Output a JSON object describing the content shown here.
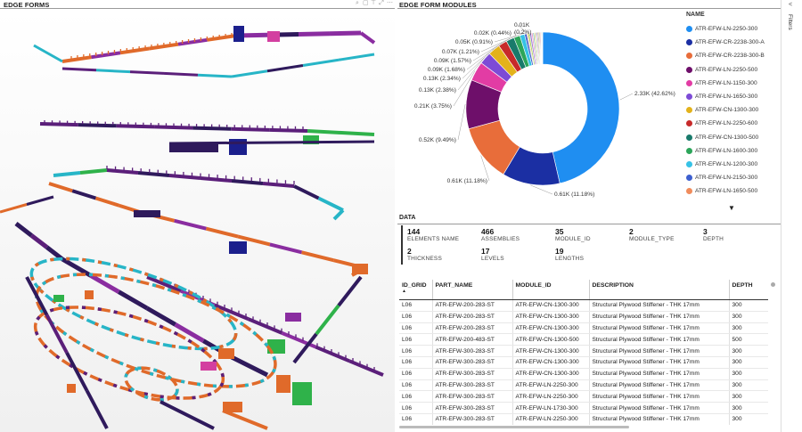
{
  "left": {
    "title": "EDGE FORMS"
  },
  "right": {
    "title": "EDGE FORM MODULES"
  },
  "header_tools": [
    "⌕",
    "▢",
    "⊤",
    "⤢",
    "⋯"
  ],
  "filters": {
    "label": "Filters",
    "chevron": "<"
  },
  "chart_data": {
    "type": "pie",
    "donut": true,
    "legend_title": "NAME",
    "legend_placement": "right",
    "slices": [
      {
        "name": "ATR-EFW-LN-2250-300",
        "label": "2.33K (42.62%)",
        "value": 2330,
        "color": "#1f8ef1"
      },
      {
        "name": "ATR-EFW-CR-2238-300-A",
        "label": "0.61K (11.18%)",
        "value": 611,
        "color": "#1b2fa3"
      },
      {
        "name": "ATR-EFW-CR-2238-300-B",
        "label": "0.61K (11.18%)",
        "value": 611,
        "color": "#e86d3a"
      },
      {
        "name": "ATR-EFW-LN-2250-500",
        "label": "0.52K (9.49%)",
        "value": 519,
        "color": "#6e0f6a"
      },
      {
        "name": "ATR-EFW-LN-1150-300",
        "label": "0.21K (3.75%)",
        "value": 205,
        "color": "#e23ca4"
      },
      {
        "name": "ATR-EFW-LN-1650-300",
        "label": "0.13K (2.38%)",
        "value": 130,
        "color": "#7d4bd6"
      },
      {
        "name": "ATR-EFW-CN-1300-300",
        "label": "0.13K (2.34%)",
        "value": 128,
        "color": "#e3b21b"
      },
      {
        "name": "ATR-EFW-LN-2250-600",
        "label": "0.09K (1.68%)",
        "value": 92,
        "color": "#c72a2a"
      },
      {
        "name": "ATR-EFW-CN-1300-500",
        "label": "0.09K (1.57%)",
        "value": 86,
        "color": "#197a6b"
      },
      {
        "name": "ATR-EFW-LN-1600-300",
        "label": "0.07K (1.21%)",
        "value": 66,
        "color": "#2ca55a"
      },
      {
        "name": "ATR-EFW-LN-1200-300",
        "label": "0.05K (0.91%)",
        "value": 50,
        "color": "#36c2e6"
      },
      {
        "name": "ATR-EFW-LN-2150-300",
        "label": "0.02K (0.44%)",
        "value": 24,
        "color": "#3d5fcf"
      },
      {
        "name": "ATR-EFW-LN-1650-500",
        "label": "0.01K (0.2%)",
        "value": 11,
        "color": "#f08c5c"
      }
    ],
    "others": [
      {
        "value": 20,
        "color": "#b5d96a"
      },
      {
        "value": 18,
        "color": "#9a7ad8"
      },
      {
        "value": 16,
        "color": "#f2a1c8"
      },
      {
        "value": 14,
        "color": "#70c1b3"
      },
      {
        "value": 13,
        "color": "#ffcf5c"
      },
      {
        "value": 12,
        "color": "#8bc4f0"
      },
      {
        "value": 11,
        "color": "#d45d8c"
      },
      {
        "value": 10,
        "color": "#5a9e3a"
      },
      {
        "value": 9,
        "color": "#c98a3a"
      },
      {
        "value": 8,
        "color": "#4a4a8a"
      },
      {
        "value": 8,
        "color": "#e05050"
      },
      {
        "value": 7,
        "color": "#50b0a0"
      },
      {
        "value": 6,
        "color": "#333333"
      },
      {
        "value": 5,
        "color": "#88aa33"
      }
    ]
  },
  "data_section": {
    "title": "DATA",
    "stats": [
      {
        "value": "144",
        "label": "ELEMENTS NAME"
      },
      {
        "value": "466",
        "label": "ASSEMBLIES"
      },
      {
        "value": "35",
        "label": "MODULE_ID"
      },
      {
        "value": "2",
        "label": "MODULE_TYPE"
      },
      {
        "value": "3",
        "label": "DEPTH"
      },
      {
        "value": "2",
        "label": "THICKNESS"
      },
      {
        "value": "17",
        "label": "LEVELS"
      },
      {
        "value": "19",
        "label": "LENGTHS"
      }
    ]
  },
  "table": {
    "columns": [
      "ID_GRID",
      "PART_NAME",
      "MODULE_ID",
      "DESCRIPTION",
      "DEPTH"
    ],
    "sort_indicator": "▲",
    "rows": [
      [
        "L06",
        "ATR-EFW-200-283-ST",
        "ATR-EFW-CN-1300-300",
        "Structural Plywood Stiffener - THK 17mm",
        "300"
      ],
      [
        "L06",
        "ATR-EFW-200-283-ST",
        "ATR-EFW-CN-1300-300",
        "Structural Plywood Stiffener - THK 17mm",
        "300"
      ],
      [
        "L06",
        "ATR-EFW-200-283-ST",
        "ATR-EFW-CN-1300-300",
        "Structural Plywood Stiffener - THK 17mm",
        "300"
      ],
      [
        "L06",
        "ATR-EFW-200-483-ST",
        "ATR-EFW-CN-1300-500",
        "Structural Plywood Stiffener - THK 17mm",
        "500"
      ],
      [
        "L06",
        "ATR-EFW-300-283-ST",
        "ATR-EFW-CN-1300-300",
        "Structural Plywood Stiffener - THK 17mm",
        "300"
      ],
      [
        "L06",
        "ATR-EFW-300-283-ST",
        "ATR-EFW-CN-1300-300",
        "Structural Plywood Stiffener - THK 17mm",
        "300"
      ],
      [
        "L06",
        "ATR-EFW-300-283-ST",
        "ATR-EFW-CN-1300-300",
        "Structural Plywood Stiffener - THK 17mm",
        "300"
      ],
      [
        "L06",
        "ATR-EFW-300-283-ST",
        "ATR-EFW-LN-2250-300",
        "Structural Plywood Stiffener - THK 17mm",
        "300"
      ],
      [
        "L06",
        "ATR-EFW-300-283-ST",
        "ATR-EFW-LN-2250-300",
        "Structural Plywood Stiffener - THK 17mm",
        "300"
      ],
      [
        "L06",
        "ATR-EFW-300-283-ST",
        "ATR-EFW-LN-1730-300",
        "Structural Plywood Stiffener - THK 17mm",
        "300"
      ],
      [
        "L06",
        "ATR-EFW-300-283-ST",
        "ATR-EFW-LN-2250-300",
        "Structural Plywood Stiffener - THK 17mm",
        "300"
      ]
    ]
  },
  "scene": {
    "colors": [
      "#2f1a5c",
      "#5b1f7a",
      "#e06a2a",
      "#27b5c7",
      "#8a2da0",
      "#1b1f8c",
      "#2fb24a",
      "#d33fa0",
      "#3d88d8"
    ]
  }
}
